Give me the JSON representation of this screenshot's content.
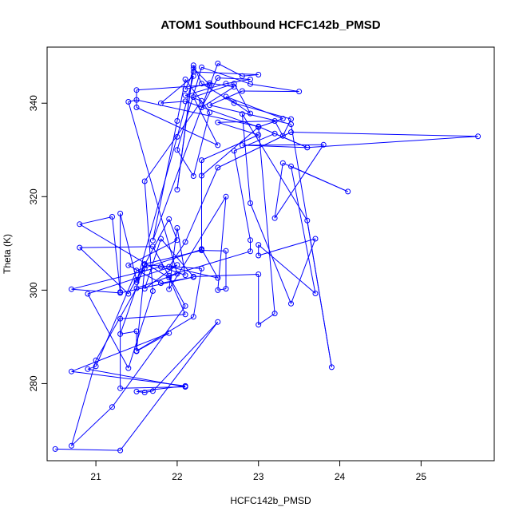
{
  "chart_data": {
    "type": "line",
    "title": "ATOM1 Southbound HCFC142b_PMSD",
    "xlabel": "HCFC142b_PMSD",
    "ylabel": "Theta (K)",
    "xlim": [
      20.4,
      25.9
    ],
    "ylim": [
      263.5,
      352
    ],
    "xticks": [
      21,
      22,
      23,
      24,
      25
    ],
    "yticks": [
      280,
      300,
      320,
      340
    ],
    "grid": false,
    "legend": "none",
    "markers": "open-circle",
    "series_color": "#0000ff",
    "points": [
      [
        20.5,
        266.0
      ],
      [
        21.3,
        265.7
      ],
      [
        22.5,
        293.2
      ],
      [
        21.7,
        278.4
      ],
      [
        21.6,
        278.1
      ],
      [
        21.5,
        278.3
      ],
      [
        22.1,
        279.5
      ],
      [
        20.7,
        282.6
      ],
      [
        21.9,
        290.8
      ],
      [
        21.5,
        286.9
      ],
      [
        21.5,
        291.2
      ],
      [
        21.3,
        290.6
      ],
      [
        21.6,
        305.6
      ],
      [
        22.3,
        308.5
      ],
      [
        22.6,
        308.4
      ],
      [
        22.6,
        300.3
      ],
      [
        22.5,
        300.0
      ],
      [
        22.6,
        320.0
      ],
      [
        21.9,
        300.2
      ],
      [
        22.0,
        313.3
      ],
      [
        22.1,
        303.2
      ],
      [
        21.8,
        305.0
      ],
      [
        20.7,
        300.2
      ],
      [
        21.3,
        299.4
      ],
      [
        22.2,
        302.8
      ],
      [
        21.8,
        301.5
      ],
      [
        21.4,
        305.3
      ],
      [
        22.0,
        310.7
      ],
      [
        21.9,
        315.2
      ],
      [
        21.5,
        302.2
      ],
      [
        21.3,
        316.4
      ],
      [
        21.3,
        299.6
      ],
      [
        21.2,
        315.7
      ],
      [
        20.8,
        314.1
      ],
      [
        21.9,
        302.7
      ],
      [
        22.1,
        294.8
      ],
      [
        21.3,
        293.9
      ],
      [
        21.3,
        279.0
      ],
      [
        22.1,
        279.3
      ],
      [
        20.9,
        283.1
      ],
      [
        21.0,
        283.7
      ],
      [
        21.5,
        304.2
      ],
      [
        22.3,
        308.7
      ],
      [
        22.3,
        324.5
      ],
      [
        23.0,
        334.9
      ],
      [
        23.3,
        336.7
      ],
      [
        22.6,
        341.4
      ],
      [
        22.9,
        337.8
      ],
      [
        22.7,
        344.2
      ],
      [
        22.2,
        341.3
      ],
      [
        22.5,
        331.0
      ],
      [
        21.5,
        339.1
      ],
      [
        21.5,
        342.8
      ],
      [
        22.4,
        343.9
      ],
      [
        22.2,
        347.5
      ],
      [
        22.0,
        321.5
      ],
      [
        22.2,
        348.1
      ],
      [
        22.3,
        344.2
      ],
      [
        22.7,
        340.0
      ],
      [
        23.4,
        336.6
      ],
      [
        23.3,
        333.0
      ],
      [
        23.2,
        336.2
      ],
      [
        22.5,
        335.9
      ],
      [
        23.0,
        333.2
      ],
      [
        22.3,
        327.8
      ],
      [
        22.3,
        308.8
      ],
      [
        22.5,
        302.6
      ],
      [
        21.9,
        305.0
      ],
      [
        22.1,
        310.3
      ],
      [
        22.5,
        326.2
      ],
      [
        23.4,
        333.8
      ],
      [
        25.7,
        332.9
      ],
      [
        23.6,
        330.5
      ],
      [
        22.8,
        331.0
      ],
      [
        23.8,
        331.1
      ],
      [
        23.2,
        315.4
      ],
      [
        23.3,
        327.2
      ],
      [
        24.1,
        321.1
      ],
      [
        23.4,
        326.5
      ],
      [
        23.7,
        299.3
      ],
      [
        23.0,
        309.7
      ],
      [
        23.0,
        307.4
      ],
      [
        23.7,
        311.0
      ],
      [
        23.4,
        297.1
      ],
      [
        22.9,
        318.6
      ],
      [
        22.8,
        337.7
      ],
      [
        23.6,
        314.9
      ],
      [
        23.9,
        283.5
      ],
      [
        23.4,
        335.5
      ],
      [
        22.4,
        339.6
      ],
      [
        22.8,
        342.6
      ],
      [
        23.5,
        342.5
      ],
      [
        22.9,
        344.1
      ],
      [
        22.3,
        347.7
      ],
      [
        22.0,
        330.0
      ],
      [
        22.2,
        324.4
      ],
      [
        22.4,
        338.0
      ],
      [
        22.1,
        345.1
      ],
      [
        22.0,
        336.2
      ],
      [
        21.7,
        310.6
      ],
      [
        22.5,
        348.5
      ],
      [
        22.8,
        345.8
      ],
      [
        23.0,
        346.1
      ],
      [
        22.2,
        346.7
      ],
      [
        22.1,
        343.0
      ],
      [
        22.4,
        344.3
      ],
      [
        22.7,
        343.5
      ],
      [
        22.3,
        339.1
      ],
      [
        22.5,
        345.4
      ],
      [
        22.9,
        345.1
      ],
      [
        22.6,
        344.2
      ],
      [
        22.1,
        341.7
      ],
      [
        22.3,
        340.5
      ],
      [
        21.6,
        323.3
      ],
      [
        21.7,
        299.8
      ],
      [
        21.4,
        283.3
      ],
      [
        20.9,
        299.2
      ],
      [
        22.0,
        305.4
      ],
      [
        21.6,
        300.3
      ],
      [
        21.8,
        311.0
      ],
      [
        22.2,
        302.9
      ],
      [
        23.0,
        303.4
      ],
      [
        23.0,
        292.6
      ],
      [
        23.2,
        295.0
      ],
      [
        23.0,
        334.9
      ],
      [
        22.1,
        340.4
      ],
      [
        21.8,
        340.0
      ],
      [
        22.2,
        345.8
      ],
      [
        22.0,
        332.8
      ],
      [
        21.5,
        301.7
      ],
      [
        21.6,
        304.6
      ],
      [
        21.5,
        287.0
      ],
      [
        22.2,
        294.3
      ],
      [
        22.3,
        304.6
      ],
      [
        21.6,
        305.4
      ],
      [
        21.4,
        299.2
      ],
      [
        20.8,
        309.1
      ],
      [
        21.7,
        309.3
      ],
      [
        22.1,
        296.6
      ],
      [
        21.2,
        275.0
      ],
      [
        20.7,
        266.7
      ],
      [
        21.0,
        285.0
      ],
      [
        21.5,
        300.4
      ],
      [
        22.0,
        303.5
      ],
      [
        21.4,
        340.3
      ],
      [
        21.5,
        340.7
      ],
      [
        23.0,
        335.0
      ],
      [
        23.6,
        330.5
      ],
      [
        23.2,
        333.5
      ],
      [
        22.7,
        329.8
      ],
      [
        22.9,
        310.7
      ],
      [
        22.9,
        308.3
      ],
      [
        21.9,
        303.1
      ]
    ]
  }
}
